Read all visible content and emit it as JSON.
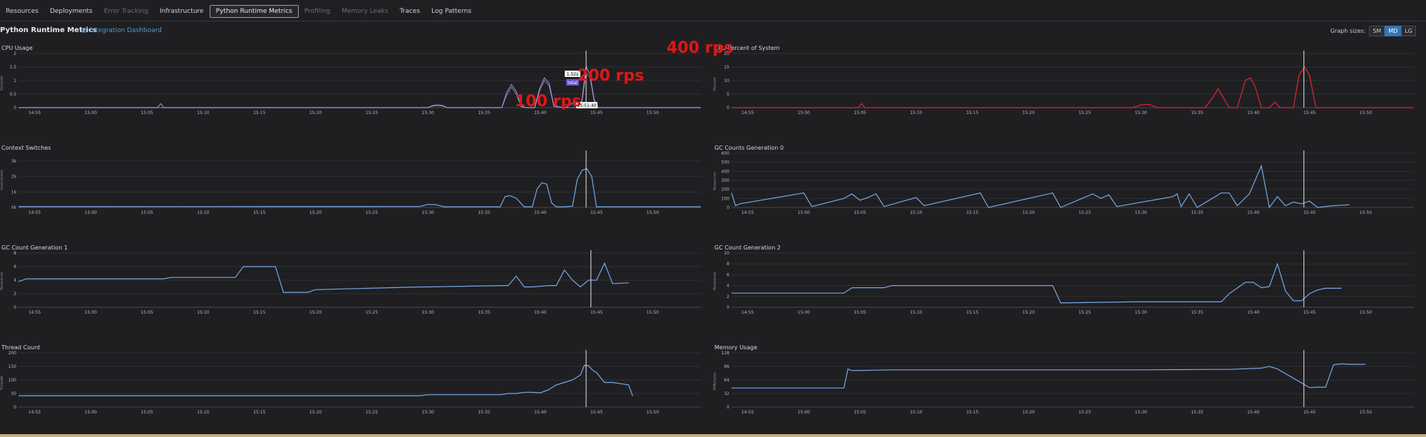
{
  "tabs": [
    {
      "label": "Resources",
      "state": "normal"
    },
    {
      "label": "Deployments",
      "state": "normal"
    },
    {
      "label": "Error Tracking",
      "state": "disabled"
    },
    {
      "label": "Infrastructure",
      "state": "normal"
    },
    {
      "label": "Python Runtime Metrics",
      "state": "active"
    },
    {
      "label": "Profiling",
      "state": "disabled"
    },
    {
      "label": "Memory Leaks",
      "state": "disabled"
    },
    {
      "label": "Traces",
      "state": "normal"
    },
    {
      "label": "Log Patterns",
      "state": "normal"
    }
  ],
  "header": {
    "title": "Python Runtime Metrics",
    "integration_link": "Integration Dashboard",
    "integration_icon": "dashboard-icon",
    "graph_sizes_label": "Graph sizes:",
    "sizes": [
      "SM",
      "MD",
      "LG"
    ],
    "active_size": "MD"
  },
  "annotations": {
    "a100": "100 rps",
    "a200": "200 rps",
    "a400": "400 rps"
  },
  "tooltip": {
    "value": "1.52s",
    "series": "total",
    "time": "15:51:40"
  },
  "colors": {
    "blue": "#79a8e6",
    "purple": "#8f7fd8",
    "red": "#e2262e",
    "bg": "#1f1f22",
    "grid": "#35373b"
  },
  "x_ticks": [
    "14:55",
    "15:00",
    "15:05",
    "15:10",
    "15:15",
    "15:20",
    "15:25",
    "15:30",
    "15:35",
    "15:40",
    "15:45",
    "15:50"
  ],
  "panels": [
    {
      "key": "cpu",
      "title": "CPU Usage",
      "ylabel": "Seconds"
    },
    {
      "key": "cpupct",
      "title": "CPU Percent of System",
      "ylabel": "Percent"
    },
    {
      "key": "ctx",
      "title": "Context Switches",
      "ylabel": "Invocations"
    },
    {
      "key": "gc0",
      "title": "GC Counts Generation 0",
      "ylabel": "Resources"
    },
    {
      "key": "gc1",
      "title": "GC Count Generation 1",
      "ylabel": "Resources"
    },
    {
      "key": "gc2",
      "title": "GC Count Generation 2",
      "ylabel": "Resources"
    },
    {
      "key": "threads",
      "title": "Thread Count",
      "ylabel": "Threads"
    },
    {
      "key": "mem",
      "title": "Memory Usage",
      "ylabel": "MiB/bytes"
    }
  ],
  "chart_data": [
    {
      "key": "cpu",
      "type": "line",
      "title": "CPU Usage",
      "ylabel": "Seconds",
      "yticks": [
        "0",
        "0.5",
        "1",
        "1.5",
        "2"
      ],
      "ylim": [
        0,
        2
      ],
      "color": "#8f7fd8",
      "series": [
        {
          "x": [
            0,
            17.3,
            17.7,
            18.1,
            51,
            51.6,
            52.2,
            52.8,
            53.4,
            60.2,
            60.8,
            61.4,
            62,
            62.6,
            63.2,
            64.3,
            64.9,
            65.5,
            66.1,
            66.7,
            68.2,
            69.2,
            69.7,
            70.2,
            70.7,
            71.2,
            71.7,
            72.2,
            73,
            74,
            85
          ],
          "y": [
            0,
            0,
            0.15,
            0,
            0,
            0.08,
            0.1,
            0.08,
            0,
            0,
            0.55,
            0.85,
            0.6,
            0.05,
            0,
            0,
            0.7,
            1.1,
            0.9,
            0.05,
            0,
            0.2,
            0,
            0.3,
            1.52,
            1.2,
            0.3,
            0,
            0,
            0,
            0
          ]
        },
        {
          "x": [
            0,
            51,
            51.6,
            52.2,
            52.8,
            53.4,
            60.2,
            60.8,
            61.4,
            62,
            62.6,
            63.2,
            64.3,
            64.9,
            65.5,
            66.1,
            66.7,
            68.2,
            69.7,
            70.2,
            70.7,
            71.2,
            71.7,
            72.2,
            85
          ],
          "y": [
            0,
            0,
            0.06,
            0.08,
            0.06,
            0,
            0,
            0.45,
            0.75,
            0.5,
            0.04,
            0,
            0,
            0.6,
            1.0,
            0.8,
            0.04,
            0,
            0,
            0.25,
            1.3,
            1.1,
            0.25,
            0,
            0
          ]
        }
      ],
      "cursor_x": 70.7
    },
    {
      "key": "cpupct",
      "type": "line",
      "title": "CPU Percent of System",
      "ylabel": "Percent",
      "yticks": [
        "0",
        "5",
        "10",
        "15",
        "20"
      ],
      "ylim": [
        0,
        20
      ],
      "color": "#e2262e",
      "series": [
        {
          "x": [
            0,
            15.8,
            16.2,
            16.6,
            50,
            51,
            52,
            53,
            59,
            60,
            60.6,
            61.2,
            62,
            63,
            64,
            64.6,
            65.2,
            66,
            67,
            67.7,
            68,
            68.3,
            70,
            70.7,
            71.4,
            72,
            72.8,
            85
          ],
          "y": [
            0,
            0,
            1.5,
            0,
            0,
            1,
            1.2,
            0,
            0,
            4,
            7,
            4,
            0,
            0,
            10,
            11,
            8,
            0,
            0,
            2,
            1,
            0,
            0,
            12,
            15,
            12,
            0,
            0
          ]
        }
      ],
      "cursor_x": 71.3
    },
    {
      "key": "ctx",
      "type": "line",
      "title": "Context Switches",
      "ylabel": "Invocations",
      "yticks": [
        "0k",
        "1k",
        "2k",
        "3k"
      ],
      "ylim": [
        0,
        3500
      ],
      "color": "#79a8e6",
      "series": [
        {
          "x": [
            0,
            50,
            51,
            52,
            53,
            60,
            60.6,
            61.2,
            62,
            63,
            64,
            64.6,
            65.2,
            65.8,
            66.4,
            67,
            68,
            69,
            69.6,
            70.2,
            70.8,
            71.4,
            72,
            85
          ],
          "y": [
            50,
            60,
            200,
            180,
            40,
            40,
            700,
            760,
            600,
            40,
            40,
            1200,
            1600,
            1500,
            300,
            40,
            40,
            80,
            1800,
            2400,
            2500,
            2000,
            40,
            40
          ]
        }
      ],
      "cursor_x": 70.7
    },
    {
      "key": "gc0",
      "type": "line",
      "title": "GC Counts Generation 0",
      "ylabel": "Resources",
      "yticks": [
        "0",
        "100",
        "200",
        "300",
        "400",
        "500",
        "600"
      ],
      "ylim": [
        0,
        600
      ],
      "color": "#79a8e6",
      "series": [
        {
          "x": [
            0,
            0.5,
            1,
            9,
            10,
            14,
            15,
            16,
            17,
            18,
            19,
            23,
            24,
            31,
            32,
            40,
            41,
            45,
            46,
            47,
            48,
            55,
            55.5,
            56,
            57,
            58,
            61,
            62,
            63,
            64.5,
            66,
            67,
            68,
            69,
            70,
            71,
            72,
            73,
            75,
            77
          ],
          "y": [
            160,
            20,
            40,
            160,
            10,
            100,
            150,
            80,
            110,
            150,
            10,
            110,
            20,
            160,
            0,
            160,
            0,
            150,
            100,
            140,
            10,
            120,
            150,
            10,
            150,
            0,
            160,
            160,
            20,
            150,
            460,
            0,
            120,
            20,
            60,
            40,
            70,
            0,
            20,
            30
          ]
        }
      ],
      "cursor_x": 71.3
    },
    {
      "key": "gc1",
      "type": "line",
      "title": "GC Count Generation 1",
      "ylabel": "Resources",
      "yticks": [
        "0",
        "2",
        "4",
        "6",
        "8"
      ],
      "ylim": [
        0,
        8
      ],
      "color": "#79a8e6",
      "series": [
        {
          "x": [
            0,
            1,
            18,
            19,
            27,
            28,
            32,
            33,
            36,
            37,
            50,
            51,
            60,
            61,
            62,
            63,
            64,
            66,
            67,
            68,
            69,
            70,
            71,
            72,
            73,
            74,
            76
          ],
          "y": [
            3.8,
            4.2,
            4.2,
            4.4,
            4.4,
            6,
            6,
            2.2,
            2.2,
            2.6,
            3,
            3,
            3.2,
            3.2,
            4.6,
            3,
            3,
            3.2,
            3.2,
            5.5,
            4,
            3,
            4,
            4,
            6.5,
            3.5,
            3.6
          ]
        }
      ],
      "cursor_x": 71.3
    },
    {
      "key": "gc2",
      "type": "line",
      "title": "GC Count Generation 2",
      "ylabel": "Resources",
      "yticks": [
        "0",
        "2",
        "4",
        "6",
        "8",
        "10"
      ],
      "ylim": [
        0,
        10
      ],
      "color": "#79a8e6",
      "series": [
        {
          "x": [
            0,
            14,
            15,
            19,
            20,
            40,
            41,
            50,
            51,
            61,
            62,
            64,
            65,
            66,
            67,
            68,
            69,
            70,
            71,
            72,
            73,
            74,
            76
          ],
          "y": [
            2.6,
            2.6,
            3.6,
            3.6,
            4,
            4,
            0.8,
            1,
            1,
            1,
            2.5,
            4.6,
            4.6,
            3.6,
            3.8,
            8,
            3,
            1.2,
            1.2,
            2.5,
            3.2,
            3.5,
            3.5
          ]
        }
      ],
      "cursor_x": 71.3
    },
    {
      "key": "threads",
      "type": "line",
      "title": "Thread Count",
      "ylabel": "Threads",
      "yticks": [
        "0",
        "50",
        "100",
        "150",
        "200"
      ],
      "ylim": [
        0,
        220
      ],
      "color": "#79a8e6",
      "series": [
        {
          "x": [
            0,
            50,
            51,
            60,
            61,
            62,
            63,
            64,
            65,
            66,
            67,
            68,
            69,
            70,
            70.5,
            71,
            71.5,
            72,
            73,
            74,
            75,
            76,
            76.5
          ],
          "y": [
            46,
            46,
            50,
            50,
            55,
            55,
            60,
            60,
            58,
            70,
            90,
            100,
            110,
            130,
            170,
            168,
            150,
            140,
            100,
            100,
            95,
            90,
            45
          ]
        }
      ],
      "cursor_x": 70.7
    },
    {
      "key": "mem",
      "type": "line",
      "title": "Memory Usage",
      "ylabel": "MiB/bytes",
      "yticks": [
        "0",
        "32",
        "64",
        "96",
        "128"
      ],
      "ylim": [
        0,
        128
      ],
      "color": "#79a8e6",
      "series": [
        {
          "x": [
            0,
            14,
            14.5,
            15,
            20,
            40,
            50,
            60,
            62,
            66,
            67,
            68,
            72,
            73,
            74,
            75,
            76,
            77,
            78,
            79
          ],
          "y": [
            45,
            45,
            90,
            86,
            88,
            88,
            88,
            89,
            89,
            92,
            96,
            90,
            46,
            47,
            47,
            100,
            102,
            101,
            101,
            101
          ]
        }
      ],
      "cursor_x": 71.3
    }
  ]
}
